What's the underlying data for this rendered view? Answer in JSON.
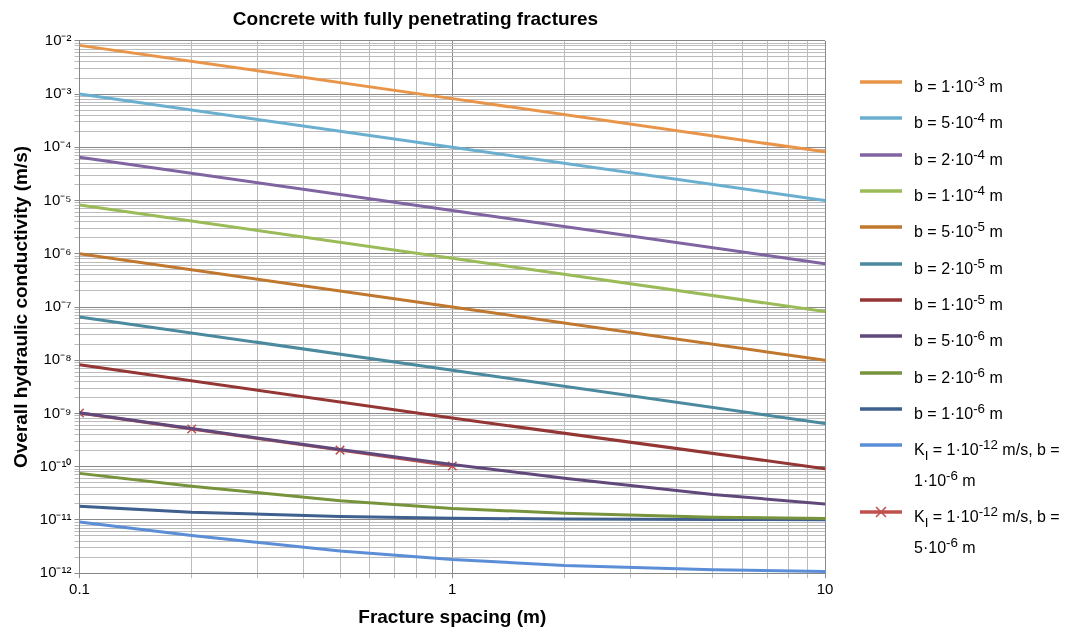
{
  "chart_data": {
    "type": "line",
    "title": "Concrete with fully penetrating fractures",
    "xlabel": "Fracture spacing (m)",
    "ylabel": "Overall hydraulic conductivity (m/s)",
    "log": "xy",
    "grid": true,
    "legend": "right",
    "marker": "none",
    "line_style": "solid",
    "xlim": [
      0.1,
      10
    ],
    "ylim": [
      1e-12,
      0.01
    ],
    "xticks": [
      0.1,
      {
        "value": 0.2,
        "label": null
      },
      {
        "value": 0.3,
        "label": null
      },
      {
        "value": 0.4,
        "label": null
      },
      {
        "value": 0.5,
        "label": null
      },
      {
        "value": 0.6,
        "label": null
      },
      {
        "value": 0.7,
        "label": null
      },
      {
        "value": 0.8,
        "label": null
      },
      {
        "value": 0.9,
        "label": null
      },
      1,
      {
        "value": 2,
        "label": null
      },
      {
        "value": 3,
        "label": null
      },
      {
        "value": 4,
        "label": null
      },
      {
        "value": 5,
        "label": null
      },
      {
        "value": 6,
        "label": null
      },
      {
        "value": 7,
        "label": null
      },
      {
        "value": 8,
        "label": null
      },
      {
        "value": 9,
        "label": null
      },
      10
    ],
    "yticks": [
      {
        "value": 1e-12,
        "label": "10⁻¹²"
      },
      {
        "value": 2e-12,
        "label": null
      },
      {
        "value": 3e-12,
        "label": null
      },
      {
        "value": 4e-12,
        "label": null
      },
      {
        "value": 5e-12,
        "label": null
      },
      {
        "value": 6e-12,
        "label": null
      },
      {
        "value": 7e-12,
        "label": null
      },
      {
        "value": 8e-12,
        "label": null
      },
      {
        "value": 9e-12,
        "label": null
      },
      {
        "value": 1e-11,
        "label": "10⁻¹¹"
      },
      {
        "value": 2e-11,
        "label": null
      },
      {
        "value": 3e-11,
        "label": null
      },
      {
        "value": 4e-11,
        "label": null
      },
      {
        "value": 5e-11,
        "label": null
      },
      {
        "value": 6e-11,
        "label": null
      },
      {
        "value": 7e-11,
        "label": null
      },
      {
        "value": 8e-11,
        "label": null
      },
      {
        "value": 9e-11,
        "label": null
      },
      {
        "value": 1e-10,
        "label": "10⁻¹⁰"
      },
      {
        "value": 2e-10,
        "label": null
      },
      {
        "value": 3e-10,
        "label": null
      },
      {
        "value": 4e-10,
        "label": null
      },
      {
        "value": 5e-10,
        "label": null
      },
      {
        "value": 6e-10,
        "label": null
      },
      {
        "value": 7e-10,
        "label": null
      },
      {
        "value": 8e-10,
        "label": null
      },
      {
        "value": 9e-10,
        "label": null
      },
      {
        "value": 1e-09,
        "label": "10⁻⁹"
      },
      {
        "value": 2e-09,
        "label": null
      },
      {
        "value": 3e-09,
        "label": null
      },
      {
        "value": 4e-09,
        "label": null
      },
      {
        "value": 5e-09,
        "label": null
      },
      {
        "value": 6e-09,
        "label": null
      },
      {
        "value": 7e-09,
        "label": null
      },
      {
        "value": 8e-09,
        "label": null
      },
      {
        "value": 9e-09,
        "label": null
      },
      {
        "value": 1e-08,
        "label": "10⁻⁸"
      },
      {
        "value": 2e-08,
        "label": null
      },
      {
        "value": 3e-08,
        "label": null
      },
      {
        "value": 4e-08,
        "label": null
      },
      {
        "value": 5e-08,
        "label": null
      },
      {
        "value": 6e-08,
        "label": null
      },
      {
        "value": 7e-08,
        "label": null
      },
      {
        "value": 8e-08,
        "label": null
      },
      {
        "value": 9e-08,
        "label": null
      },
      {
        "value": 1e-07,
        "label": "10⁻⁷"
      },
      {
        "value": 2e-07,
        "label": null
      },
      {
        "value": 3e-07,
        "label": null
      },
      {
        "value": 4e-07,
        "label": null
      },
      {
        "value": 5e-07,
        "label": null
      },
      {
        "value": 6e-07,
        "label": null
      },
      {
        "value": 7e-07,
        "label": null
      },
      {
        "value": 8e-07,
        "label": null
      },
      {
        "value": 9e-07,
        "label": null
      },
      {
        "value": 1e-06,
        "label": "10⁻⁶"
      },
      {
        "value": 2e-06,
        "label": null
      },
      {
        "value": 3e-06,
        "label": null
      },
      {
        "value": 4e-06,
        "label": null
      },
      {
        "value": 5e-06,
        "label": null
      },
      {
        "value": 6e-06,
        "label": null
      },
      {
        "value": 7e-06,
        "label": null
      },
      {
        "value": 8e-06,
        "label": null
      },
      {
        "value": 9e-06,
        "label": null
      },
      {
        "value": 1e-05,
        "label": "10⁻⁵"
      },
      {
        "value": 2e-05,
        "label": null
      },
      {
        "value": 3e-05,
        "label": null
      },
      {
        "value": 4e-05,
        "label": null
      },
      {
        "value": 5e-05,
        "label": null
      },
      {
        "value": 6e-05,
        "label": null
      },
      {
        "value": 7e-05,
        "label": null
      },
      {
        "value": 8e-05,
        "label": null
      },
      {
        "value": 9e-05,
        "label": null
      },
      {
        "value": 0.0001,
        "label": "10⁻⁴"
      },
      {
        "value": 0.0002,
        "label": null
      },
      {
        "value": 0.0003,
        "label": null
      },
      {
        "value": 0.0004,
        "label": null
      },
      {
        "value": 0.0005,
        "label": null
      },
      {
        "value": 0.0006,
        "label": null
      },
      {
        "value": 0.0007,
        "label": null
      },
      {
        "value": 0.0008,
        "label": null
      },
      {
        "value": 0.0009,
        "label": null
      },
      {
        "value": 0.001,
        "label": "10⁻³"
      },
      {
        "value": 0.002,
        "label": null
      },
      {
        "value": 0.003,
        "label": null
      },
      {
        "value": 0.004,
        "label": null
      },
      {
        "value": 0.005,
        "label": null
      },
      {
        "value": 0.006,
        "label": null
      },
      {
        "value": 0.007,
        "label": null
      },
      {
        "value": 0.008,
        "label": null
      },
      {
        "value": 0.009,
        "label": null
      },
      {
        "value": 0.01,
        "label": "10⁻²"
      }
    ],
    "series": [
      {
        "name": "b = 1·10$^{-3}$ m",
        "color": "#e8954a",
        "x": [
          0.1,
          1,
          10
        ],
        "values": [
          0.0082,
          0.00082,
          8.2e-05
        ]
      },
      {
        "name": "b = 5·10$^{-4}$ m",
        "color": "#6aafd0",
        "x": [
          0.1,
          1,
          10
        ],
        "values": [
          0.001,
          0.0001,
          1e-05
        ]
      },
      {
        "name": "b = 2·10$^{-4}$ m",
        "color": "#8064a2",
        "x": [
          0.1,
          1,
          10
        ],
        "values": [
          6.5e-05,
          6.5e-06,
          6.5e-07
        ]
      },
      {
        "name": "b = 1·10$^{-4}$ m",
        "color": "#9bbb59",
        "x": [
          0.1,
          1,
          10
        ],
        "values": [
          8.2e-06,
          8.2e-07,
          8.2e-08
        ]
      },
      {
        "name": "b = 5·10$^{-5}$ m",
        "color": "#c0772e",
        "x": [
          0.1,
          1,
          10
        ],
        "values": [
          1e-06,
          1e-07,
          1e-08
        ]
      },
      {
        "name": "b = 2·10$^{-5}$ m",
        "color": "#4b8a9e",
        "x": [
          0.1,
          1,
          10
        ],
        "values": [
          6.5e-08,
          6.5e-09,
          6.5e-10
        ]
      },
      {
        "name": "b = 1·10$^{-5}$ m",
        "color": "#943634",
        "x": [
          0.1,
          1,
          10
        ],
        "values": [
          8.2e-09,
          8.2e-10,
          9.2e-11
        ]
      },
      {
        "name": "b = 5·10$^{-6}$ m",
        "color": "#60497a",
        "x": [
          0.1,
          0.2,
          0.5,
          1,
          2,
          5,
          10
        ],
        "values": [
          1.03e-09,
          5.2e-10,
          2.1e-10,
          1.1e-10,
          6.1e-11,
          3e-11,
          2e-11
        ]
      },
      {
        "name": "b = 2·10$^{-6}$ m",
        "color": "#77933c",
        "x": [
          0.1,
          0.2,
          0.5,
          1,
          2,
          5,
          10
        ],
        "values": [
          7.5e-11,
          4.3e-11,
          2.3e-11,
          1.65e-11,
          1.33e-11,
          1.13e-11,
          1.07e-11
        ]
      },
      {
        "name": "b = 1·10$^{-6}$ m",
        "color": "#3f5f8f",
        "x": [
          0.1,
          0.2,
          0.5,
          1,
          2,
          5,
          10
        ],
        "values": [
          1.8e-11,
          1.4e-11,
          1.16e-11,
          1.08e-11,
          1.04e-11,
          1.02e-11,
          1.01e-11
        ]
      },
      {
        "name": "K$_{I}$ = 1·10$^{-12}$ m/s, b = 1·10$^{-6}$ m",
        "color": "#5b8ed6",
        "x": [
          0.1,
          0.2,
          0.5,
          1,
          2,
          5,
          10
        ],
        "values": [
          9.2e-12,
          5.1e-12,
          2.6e-12,
          1.8e-12,
          1.4e-12,
          1.16e-12,
          1.08e-12
        ]
      },
      {
        "name": "K$_{I}$ = 1·10$^{-12}$ m/s, b = 5·10$^{-6}$ m",
        "color": "#c0504d",
        "marker": "cross",
        "x": [
          0.1,
          0.2,
          0.5,
          1
        ],
        "values": [
          1.02e-09,
          5.1e-10,
          2.05e-10,
          1.03e-10
        ]
      }
    ]
  }
}
